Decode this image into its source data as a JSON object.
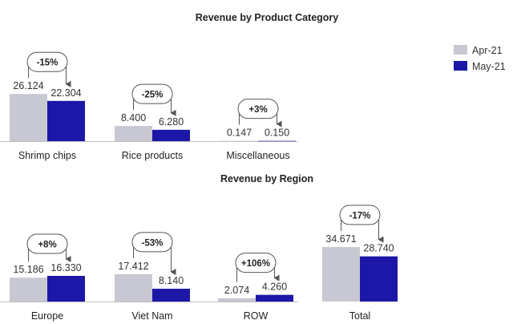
{
  "colors": {
    "apr": "#c8c8d2",
    "may": "#1c17a6",
    "axis": "#bfbfbf",
    "arrow": "#555555"
  },
  "legend": [
    {
      "label": "Apr-21",
      "color": "#c8c8d2"
    },
    {
      "label": "May-21",
      "color": "#1c17a6"
    }
  ],
  "chart_data": [
    {
      "type": "bar",
      "title": "Revenue by Product Category",
      "categories": [
        "Shrimp chips",
        "Rice products",
        "Miscellaneous"
      ],
      "series": [
        {
          "name": "Apr-21",
          "values": [
            26.124,
            8.4,
            0.147
          ],
          "labels": [
            "26.124",
            "8.400",
            "0.147"
          ]
        },
        {
          "name": "May-21",
          "values": [
            22.304,
            6.28,
            0.15
          ],
          "labels": [
            "22.304",
            "6.280",
            "0.150"
          ]
        }
      ],
      "changes": [
        "-15%",
        "-25%",
        "+3%"
      ],
      "ylim": [
        0,
        35
      ]
    },
    {
      "type": "bar",
      "title": "Revenue by Region",
      "categories": [
        "Europe",
        "Viet Nam",
        "ROW",
        "Total"
      ],
      "series": [
        {
          "name": "Apr-21",
          "values": [
            15.186,
            17.412,
            2.074,
            34.671
          ],
          "labels": [
            "15.186",
            "17.412",
            "2.074",
            "34.671"
          ]
        },
        {
          "name": "May-21",
          "values": [
            16.33,
            8.14,
            4.26,
            28.74
          ],
          "labels": [
            "16.330",
            "8.140",
            "4.260",
            "28.740"
          ]
        }
      ],
      "changes": [
        "+8%",
        "-53%",
        "+106%",
        "-17%"
      ],
      "ylim": [
        0,
        35
      ]
    }
  ]
}
